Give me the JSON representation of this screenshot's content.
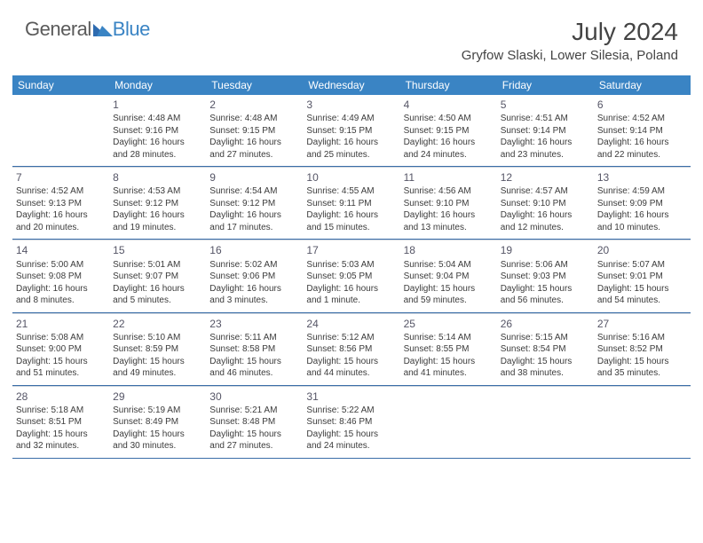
{
  "logo": {
    "text1": "General",
    "text2": "Blue"
  },
  "title": "July 2024",
  "location": "Gryfow Slaski, Lower Silesia, Poland",
  "colors": {
    "header_bg": "#3a84c4",
    "header_text": "#ffffff",
    "row_divider": "#3a6da8",
    "cell_divider": "#cfd6de",
    "body_text": "#3b3b3b",
    "title_text": "#444444",
    "logo_gray": "#5a5a5a",
    "logo_blue": "#3a84c4"
  },
  "weekdays": [
    "Sunday",
    "Monday",
    "Tuesday",
    "Wednesday",
    "Thursday",
    "Friday",
    "Saturday"
  ],
  "weeks": [
    [
      {
        "n": ""
      },
      {
        "n": "1",
        "sr": "4:48 AM",
        "ss": "9:16 PM",
        "d1": "16 hours",
        "d2": "and 28 minutes."
      },
      {
        "n": "2",
        "sr": "4:48 AM",
        "ss": "9:15 PM",
        "d1": "16 hours",
        "d2": "and 27 minutes."
      },
      {
        "n": "3",
        "sr": "4:49 AM",
        "ss": "9:15 PM",
        "d1": "16 hours",
        "d2": "and 25 minutes."
      },
      {
        "n": "4",
        "sr": "4:50 AM",
        "ss": "9:15 PM",
        "d1": "16 hours",
        "d2": "and 24 minutes."
      },
      {
        "n": "5",
        "sr": "4:51 AM",
        "ss": "9:14 PM",
        "d1": "16 hours",
        "d2": "and 23 minutes."
      },
      {
        "n": "6",
        "sr": "4:52 AM",
        "ss": "9:14 PM",
        "d1": "16 hours",
        "d2": "and 22 minutes."
      }
    ],
    [
      {
        "n": "7",
        "sr": "4:52 AM",
        "ss": "9:13 PM",
        "d1": "16 hours",
        "d2": "and 20 minutes."
      },
      {
        "n": "8",
        "sr": "4:53 AM",
        "ss": "9:12 PM",
        "d1": "16 hours",
        "d2": "and 19 minutes."
      },
      {
        "n": "9",
        "sr": "4:54 AM",
        "ss": "9:12 PM",
        "d1": "16 hours",
        "d2": "and 17 minutes."
      },
      {
        "n": "10",
        "sr": "4:55 AM",
        "ss": "9:11 PM",
        "d1": "16 hours",
        "d2": "and 15 minutes."
      },
      {
        "n": "11",
        "sr": "4:56 AM",
        "ss": "9:10 PM",
        "d1": "16 hours",
        "d2": "and 13 minutes."
      },
      {
        "n": "12",
        "sr": "4:57 AM",
        "ss": "9:10 PM",
        "d1": "16 hours",
        "d2": "and 12 minutes."
      },
      {
        "n": "13",
        "sr": "4:59 AM",
        "ss": "9:09 PM",
        "d1": "16 hours",
        "d2": "and 10 minutes."
      }
    ],
    [
      {
        "n": "14",
        "sr": "5:00 AM",
        "ss": "9:08 PM",
        "d1": "16 hours",
        "d2": "and 8 minutes."
      },
      {
        "n": "15",
        "sr": "5:01 AM",
        "ss": "9:07 PM",
        "d1": "16 hours",
        "d2": "and 5 minutes."
      },
      {
        "n": "16",
        "sr": "5:02 AM",
        "ss": "9:06 PM",
        "d1": "16 hours",
        "d2": "and 3 minutes."
      },
      {
        "n": "17",
        "sr": "5:03 AM",
        "ss": "9:05 PM",
        "d1": "16 hours",
        "d2": "and 1 minute."
      },
      {
        "n": "18",
        "sr": "5:04 AM",
        "ss": "9:04 PM",
        "d1": "15 hours",
        "d2": "and 59 minutes."
      },
      {
        "n": "19",
        "sr": "5:06 AM",
        "ss": "9:03 PM",
        "d1": "15 hours",
        "d2": "and 56 minutes."
      },
      {
        "n": "20",
        "sr": "5:07 AM",
        "ss": "9:01 PM",
        "d1": "15 hours",
        "d2": "and 54 minutes."
      }
    ],
    [
      {
        "n": "21",
        "sr": "5:08 AM",
        "ss": "9:00 PM",
        "d1": "15 hours",
        "d2": "and 51 minutes."
      },
      {
        "n": "22",
        "sr": "5:10 AM",
        "ss": "8:59 PM",
        "d1": "15 hours",
        "d2": "and 49 minutes."
      },
      {
        "n": "23",
        "sr": "5:11 AM",
        "ss": "8:58 PM",
        "d1": "15 hours",
        "d2": "and 46 minutes."
      },
      {
        "n": "24",
        "sr": "5:12 AM",
        "ss": "8:56 PM",
        "d1": "15 hours",
        "d2": "and 44 minutes."
      },
      {
        "n": "25",
        "sr": "5:14 AM",
        "ss": "8:55 PM",
        "d1": "15 hours",
        "d2": "and 41 minutes."
      },
      {
        "n": "26",
        "sr": "5:15 AM",
        "ss": "8:54 PM",
        "d1": "15 hours",
        "d2": "and 38 minutes."
      },
      {
        "n": "27",
        "sr": "5:16 AM",
        "ss": "8:52 PM",
        "d1": "15 hours",
        "d2": "and 35 minutes."
      }
    ],
    [
      {
        "n": "28",
        "sr": "5:18 AM",
        "ss": "8:51 PM",
        "d1": "15 hours",
        "d2": "and 32 minutes."
      },
      {
        "n": "29",
        "sr": "5:19 AM",
        "ss": "8:49 PM",
        "d1": "15 hours",
        "d2": "and 30 minutes."
      },
      {
        "n": "30",
        "sr": "5:21 AM",
        "ss": "8:48 PM",
        "d1": "15 hours",
        "d2": "and 27 minutes."
      },
      {
        "n": "31",
        "sr": "5:22 AM",
        "ss": "8:46 PM",
        "d1": "15 hours",
        "d2": "and 24 minutes."
      },
      {
        "n": ""
      },
      {
        "n": ""
      },
      {
        "n": ""
      }
    ]
  ],
  "labels": {
    "sunrise": "Sunrise: ",
    "sunset": "Sunset: ",
    "daylight": "Daylight: "
  }
}
